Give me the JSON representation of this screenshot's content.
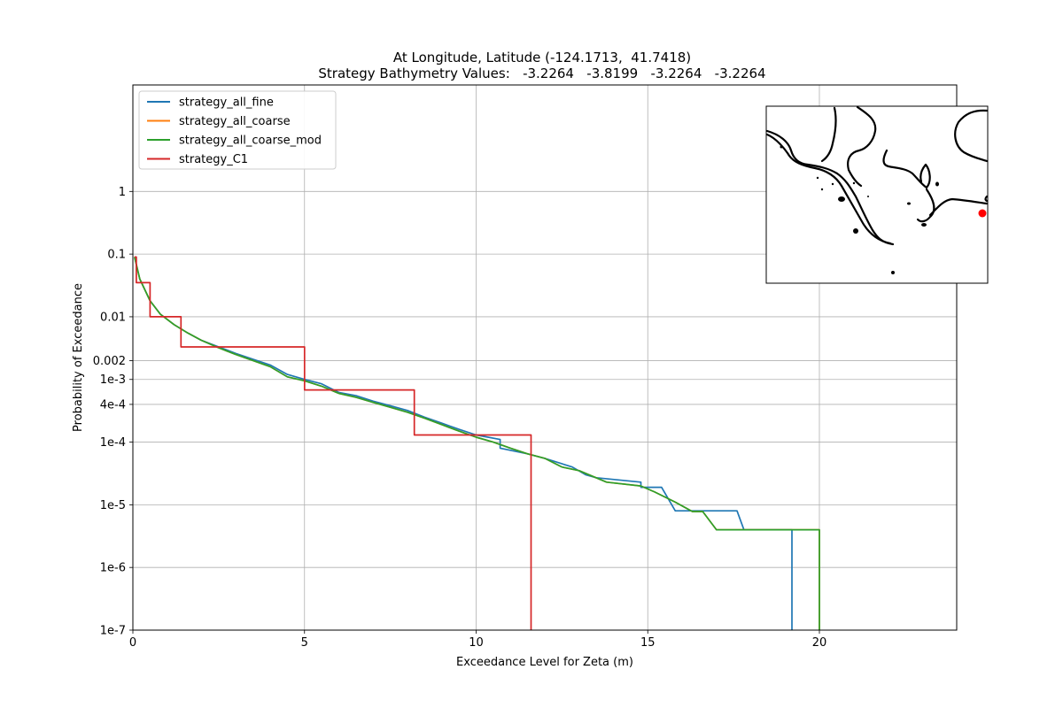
{
  "chart_data": {
    "type": "line",
    "title": "At Longitude, Latitude (-124.1713,  41.7418)",
    "subtitle": "Strategy Bathymetry Values:   -3.2264   -3.8199   -3.2264   -3.2264",
    "xlabel": "Exceedance Level for Zeta (m)",
    "ylabel": "Probability of Exceedance",
    "xlim": [
      0,
      24
    ],
    "ylim": [
      1e-07,
      50
    ],
    "yscale": "log",
    "grid": true,
    "legend_position": "upper-left",
    "x_ticks": [
      0,
      5,
      10,
      15,
      20
    ],
    "y_ticks": [
      {
        "value": 1,
        "label": "1"
      },
      {
        "value": 0.1,
        "label": "0.1"
      },
      {
        "value": 0.01,
        "label": "0.01"
      },
      {
        "value": 0.002,
        "label": "0.002"
      },
      {
        "value": 0.001,
        "label": "1e-3"
      },
      {
        "value": 0.0004,
        "label": "4e-4"
      },
      {
        "value": 0.0001,
        "label": "1e-4"
      },
      {
        "value": 1e-05,
        "label": "1e-5"
      },
      {
        "value": 1e-06,
        "label": "1e-6"
      },
      {
        "value": 1e-07,
        "label": "1e-7"
      }
    ],
    "series": [
      {
        "name": "strategy_all_fine",
        "color": "#1f77b4",
        "x": [
          0.05,
          0.2,
          0.5,
          0.8,
          1.2,
          1.6,
          2.0,
          2.5,
          3.0,
          3.5,
          4.0,
          4.5,
          5.0,
          5.5,
          6.0,
          6.5,
          7.0,
          7.5,
          8.0,
          8.5,
          9.0,
          9.5,
          10.0,
          10.7,
          10.7,
          11.5,
          12.0,
          12.8,
          13.2,
          13.5,
          14.8,
          14.8,
          15.4,
          15.8,
          15.8,
          17.6,
          17.8,
          19.2,
          19.2
        ],
        "y": [
          0.09,
          0.04,
          0.018,
          0.011,
          0.0075,
          0.0055,
          0.0042,
          0.0033,
          0.0026,
          0.0021,
          0.0017,
          0.0012,
          0.001,
          0.00085,
          0.00062,
          0.00055,
          0.00045,
          0.00038,
          0.00032,
          0.00025,
          0.0002,
          0.00016,
          0.00013,
          0.00011,
          8e-05,
          6.5e-05,
          5.5e-05,
          4e-05,
          3e-05,
          2.7e-05,
          2.3e-05,
          1.9e-05,
          1.9e-05,
          8e-06,
          8e-06,
          8e-06,
          4e-06,
          4e-06,
          1e-07
        ]
      },
      {
        "name": "strategy_all_coarse",
        "color": "#ff7f0e",
        "x": [
          0.05,
          0.2,
          0.5,
          0.8,
          1.2,
          1.6,
          2.0,
          2.5,
          3.0,
          3.5,
          4.0,
          4.5,
          5.0,
          5.5,
          6.0,
          6.5,
          7.0,
          7.5,
          8.0,
          8.5,
          9.0,
          9.5,
          10.0,
          10.5,
          11.0,
          11.5,
          12.0,
          12.5,
          13.0,
          13.8,
          14.8,
          15.2,
          15.8,
          16.3,
          16.6,
          17.0,
          20.0,
          20.0
        ],
        "y": [
          0.09,
          0.04,
          0.018,
          0.011,
          0.0075,
          0.0055,
          0.0042,
          0.0032,
          0.0025,
          0.002,
          0.0016,
          0.0011,
          0.00095,
          0.00078,
          0.0006,
          0.00052,
          0.00043,
          0.00036,
          0.0003,
          0.00024,
          0.00019,
          0.00015,
          0.00012,
          0.0001,
          8e-05,
          6.5e-05,
          5.5e-05,
          4e-05,
          3.5e-05,
          2.3e-05,
          2e-05,
          1.6e-05,
          1.1e-05,
          7.8e-06,
          7.8e-06,
          4e-06,
          4e-06,
          1e-07
        ]
      },
      {
        "name": "strategy_all_coarse_mod",
        "color": "#2ca02c",
        "x": [
          0.05,
          0.2,
          0.5,
          0.8,
          1.2,
          1.6,
          2.0,
          2.5,
          3.0,
          3.5,
          4.0,
          4.5,
          5.0,
          5.5,
          6.0,
          6.5,
          7.0,
          7.5,
          8.0,
          8.5,
          9.0,
          9.5,
          10.0,
          10.5,
          11.0,
          11.5,
          12.0,
          12.5,
          13.0,
          13.8,
          14.8,
          15.2,
          15.8,
          16.3,
          16.6,
          17.0,
          20.0,
          20.0
        ],
        "y": [
          0.09,
          0.04,
          0.018,
          0.011,
          0.0075,
          0.0055,
          0.0042,
          0.0032,
          0.0025,
          0.002,
          0.0016,
          0.0011,
          0.00095,
          0.00078,
          0.0006,
          0.00052,
          0.00043,
          0.00036,
          0.0003,
          0.00024,
          0.00019,
          0.00015,
          0.00012,
          0.0001,
          8e-05,
          6.5e-05,
          5.5e-05,
          4e-05,
          3.5e-05,
          2.3e-05,
          2e-05,
          1.6e-05,
          1.1e-05,
          7.8e-06,
          7.8e-06,
          4e-06,
          4e-06,
          1e-07
        ]
      },
      {
        "name": "strategy_C1",
        "color": "#d62728",
        "x": [
          0.05,
          0.1,
          0.1,
          0.5,
          0.5,
          1.4,
          1.4,
          5.0,
          5.0,
          8.2,
          8.2,
          11.6,
          11.6
        ],
        "y": [
          0.09,
          0.09,
          0.035,
          0.035,
          0.01,
          0.01,
          0.0033,
          0.0033,
          0.00068,
          0.00068,
          0.00013,
          0.00013,
          1e-07
        ]
      }
    ],
    "inset": {
      "content": "coastline map",
      "marker_color": "#ff0000"
    }
  }
}
